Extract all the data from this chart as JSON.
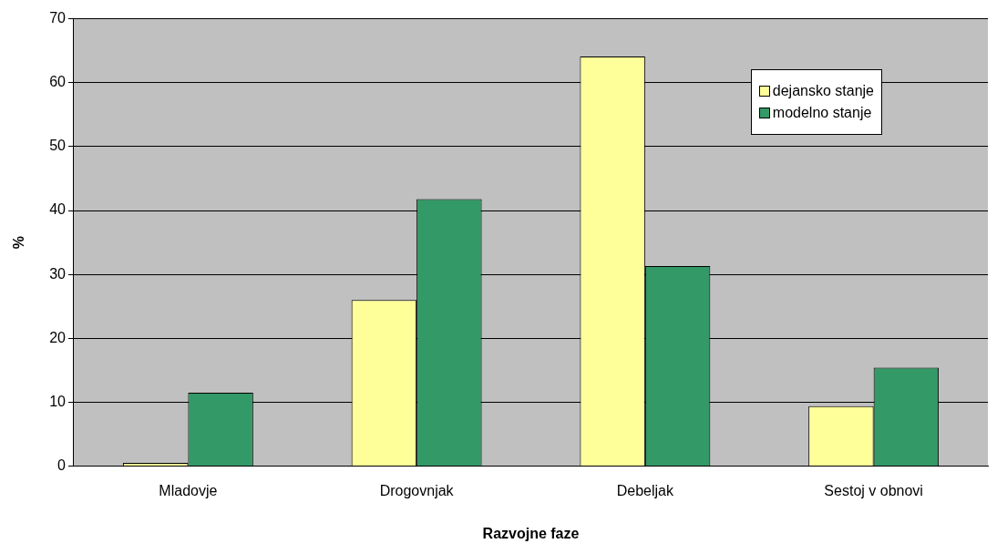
{
  "chart_data": {
    "type": "bar",
    "xlabel": "Razvojne faze",
    "ylabel": "%",
    "categories": [
      "Mladovje",
      "Drogovnjak",
      "Debeljak",
      "Sestoj v obnovi"
    ],
    "series": [
      {
        "name": "dejansko stanje",
        "color": "#ffff99",
        "values": [
          0.5,
          26.0,
          64.1,
          9.4
        ]
      },
      {
        "name": "modelno stanje",
        "color": "#339966",
        "values": [
          11.5,
          41.8,
          31.3,
          15.4
        ]
      }
    ],
    "ylim": [
      0,
      70
    ],
    "yticks": [
      0,
      10,
      20,
      30,
      40,
      50,
      60,
      70
    ],
    "grid": "y",
    "legend": "top right"
  }
}
